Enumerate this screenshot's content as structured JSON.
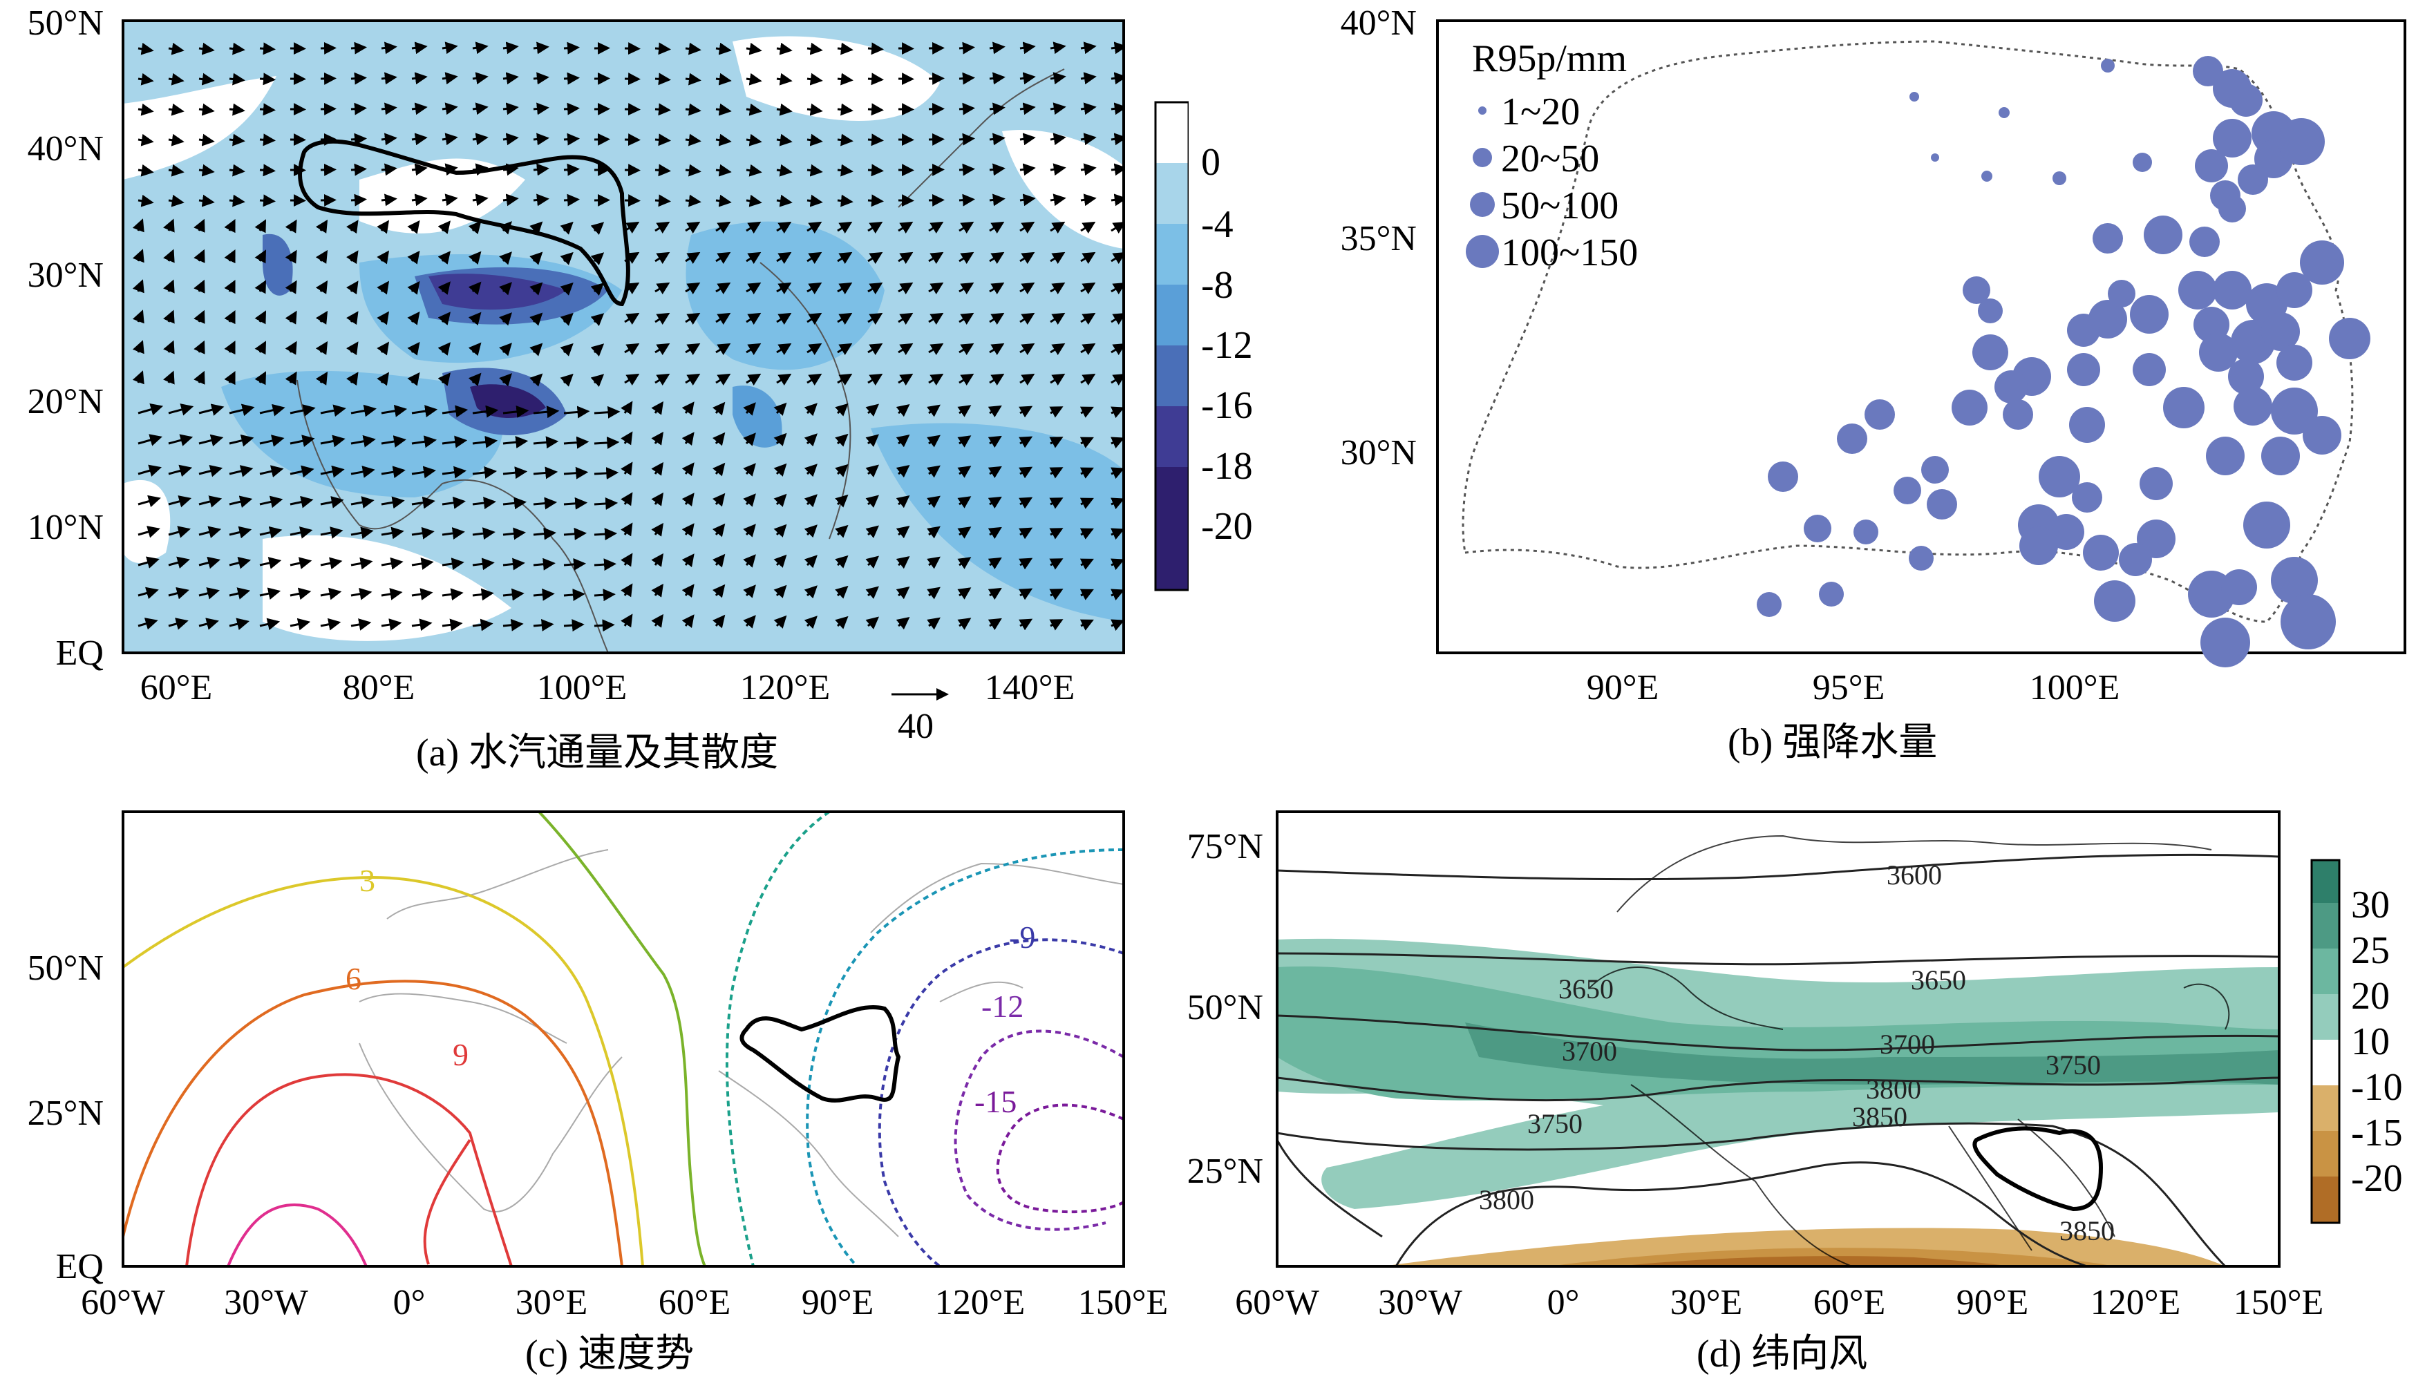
{
  "panel_a": {
    "caption": "(a) 水汽通量及其散度",
    "y_ticks": [
      "50°N",
      "40°N",
      "30°N",
      "20°N",
      "10°N",
      "EQ"
    ],
    "x_ticks": [
      "60°E",
      "80°E",
      "100°E",
      "120°E",
      "140°E"
    ],
    "ref_vector_label": "40",
    "colorbar_labels": [
      "0",
      "-4",
      "-8",
      "-12",
      "-16",
      "-18",
      "-20"
    ],
    "colorbar_colors": [
      "#ffffff",
      "#a8d5ea",
      "#7cbfe6",
      "#5a9fd8",
      "#4a6fb8",
      "#3f3c94",
      "#2e1f6e"
    ]
  },
  "panel_b": {
    "caption": "(b) 强降水量",
    "legend_title": "R95p/mm",
    "legend_items": [
      "1~20",
      "20~50",
      "50~100",
      "100~150"
    ],
    "bubble_color": "#6a79be",
    "y_ticks": [
      "40°N",
      "35°N",
      "30°N"
    ],
    "x_ticks": [
      "90°E",
      "95°E",
      "100°E"
    ]
  },
  "panel_c": {
    "caption": "(c) 速度势",
    "y_ticks": [
      "50°N",
      "25°N",
      "EQ"
    ],
    "x_ticks": [
      "60°W",
      "30°W",
      "0°",
      "30°E",
      "60°E",
      "90°E",
      "120°E",
      "150°E"
    ],
    "contour_labels": [
      "3",
      "6",
      "9",
      "-9",
      "-12",
      "-15"
    ]
  },
  "panel_d": {
    "caption": "(d) 纬向风",
    "y_ticks": [
      "75°N",
      "50°N",
      "25°N"
    ],
    "x_ticks": [
      "60°W",
      "30°W",
      "0°",
      "30°E",
      "60°E",
      "90°E",
      "120°E",
      "150°E"
    ],
    "contour_labels": [
      "3600",
      "3650",
      "3650",
      "3700",
      "3700",
      "3750",
      "3750",
      "3800",
      "3800",
      "3850",
      "3850"
    ],
    "colorbar_labels": [
      "30",
      "25",
      "20",
      "10",
      "-10",
      "-15",
      "-20"
    ],
    "colorbar_colors": [
      "#2e7f6a",
      "#4d9a84",
      "#6cb7a0",
      "#94ccbc",
      "#ffffff",
      "#dab06a",
      "#c99344",
      "#b06d26"
    ]
  }
}
